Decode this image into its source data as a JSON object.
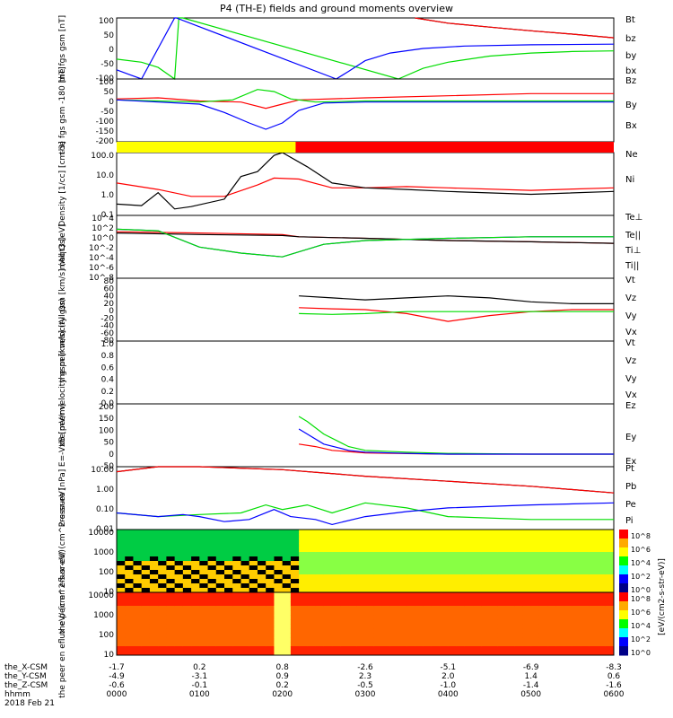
{
  "title": "P4 (TH-E) fields and ground moments overview",
  "date": "2018 Feb 21",
  "colors": {
    "black": "#000000",
    "red": "#ff0000",
    "green": "#00dd00",
    "blue": "#0000ff",
    "yellow": "#ffff00",
    "cyan": "#00ffff"
  },
  "colorbar_label": "[eV/(cm2-s-str-eV)]",
  "spec_colorbar_labels": {
    "peir": "eV/(cm^2-s-sr-eV) (All Qs)",
    "peer": "eV/(cm^2-s-sr-eV) (All Qs)"
  },
  "xaxis": {
    "rows": [
      {
        "label": "the_X-CSM",
        "values": [
          "-1.7",
          "0.2",
          "0.8",
          "-2.6",
          "-5.1",
          "-6.9",
          "-8.3"
        ]
      },
      {
        "label": "the_Y-CSM",
        "values": [
          "-4.9",
          "-3.1",
          "0.9",
          "2.3",
          "2.0",
          "1.4",
          "0.6"
        ]
      },
      {
        "label": "the_Z-CSM",
        "values": [
          "-0.6",
          "-0.1",
          "0.2",
          "-0.5",
          "-1.0",
          "-1.4",
          "-1.6"
        ]
      },
      {
        "label": "hhmm",
        "values": [
          "0000",
          "0100",
          "0200",
          "0300",
          "0400",
          "0500",
          "0600"
        ]
      }
    ]
  },
  "chart_data": [
    {
      "type": "line",
      "ylabel": "the fgs gsm [nT]",
      "ylim": [
        -100,
        100
      ],
      "yticks": [
        "100",
        "50",
        "0",
        "-50",
        "-100"
      ],
      "xlim_hours": [
        0,
        6
      ],
      "series": [
        {
          "name": "Bt",
          "color": "#000000",
          "x": [
            3.6,
            4.0,
            4.5,
            5.0,
            5.5,
            6.0
          ],
          "y": [
            100,
            83,
            70,
            58,
            47,
            35
          ]
        },
        {
          "name": "bz",
          "color": "#ff0000",
          "x": [
            3.6,
            4.0,
            4.5,
            5.0,
            5.5,
            6.0
          ],
          "y": [
            100,
            83,
            70,
            58,
            47,
            35
          ]
        },
        {
          "name": "by",
          "color": "#00dd00",
          "x": [
            0.0,
            0.3,
            0.5,
            0.7,
            0.75,
            0.8,
            3.4,
            3.7,
            4.0,
            4.5,
            5.0,
            5.5,
            6.0
          ],
          "y": [
            -35,
            -45,
            -62,
            -100,
            100,
            100,
            -100,
            -65,
            -45,
            -25,
            -15,
            -10,
            -8
          ]
        },
        {
          "name": "bx",
          "color": "#0000ff",
          "x": [
            0.0,
            0.15,
            0.3,
            0.7,
            0.72,
            2.65,
            2.8,
            3.0,
            3.3,
            3.7,
            4.2,
            5.0,
            6.0
          ],
          "y": [
            -70,
            -85,
            -100,
            100,
            100,
            -100,
            -75,
            -40,
            -15,
            0,
            8,
            12,
            14
          ]
        }
      ]
    },
    {
      "type": "line",
      "ylabel": "the fgs gsm -180 [nT]",
      "ylim": [
        -200,
        100
      ],
      "yticks": [
        "100",
        "50",
        "0",
        "-50",
        "-100",
        "-150",
        "-200"
      ],
      "series": [
        {
          "name": "Bz",
          "color": "#ff0000",
          "x": [
            0.0,
            0.5,
            1.0,
            1.5,
            1.8,
            2.0,
            2.2,
            3.0,
            4.0,
            5.0,
            6.0
          ],
          "y": [
            5,
            10,
            -5,
            -10,
            -40,
            -20,
            0,
            10,
            20,
            30,
            30
          ]
        },
        {
          "name": "By",
          "color": "#00dd00",
          "x": [
            0.0,
            0.5,
            1.0,
            1.4,
            1.7,
            1.9,
            2.1,
            2.4,
            3.0,
            4.0,
            5.0,
            6.0
          ],
          "y": [
            0,
            -5,
            -10,
            0,
            50,
            40,
            5,
            -10,
            -5,
            -5,
            -5,
            -5
          ]
        },
        {
          "name": "Bx",
          "color": "#0000ff",
          "x": [
            0.0,
            0.5,
            1.0,
            1.3,
            1.6,
            1.8,
            2.0,
            2.2,
            2.5,
            3.0,
            4.0,
            5.0,
            6.0
          ],
          "y": [
            0,
            -10,
            -20,
            -60,
            -110,
            -140,
            -110,
            -50,
            -15,
            -10,
            -10,
            -10,
            -10
          ]
        }
      ]
    },
    {
      "type": "line",
      "ylabel": "Density [1/cc] [cm-3]",
      "yscale": "log",
      "ylim": [
        0.02,
        150
      ],
      "yticks": [
        "100.0",
        "10.0",
        "1.0",
        "0.1"
      ],
      "series": [
        {
          "name": "Ne",
          "color": "#ff0000",
          "x": [
            0.0,
            0.5,
            0.9,
            1.3,
            1.7,
            1.9,
            2.2,
            2.6,
            3.0,
            3.5,
            4.0,
            5.0,
            6.0
          ],
          "y": [
            2.0,
            0.8,
            0.3,
            0.3,
            1.5,
            4.0,
            3.5,
            1.0,
            1.0,
            1.2,
            1.0,
            0.7,
            1.0
          ]
        },
        {
          "name": "Ni",
          "color": "#000000",
          "x": [
            0.0,
            0.3,
            0.5,
            0.7,
            0.9,
            1.3,
            1.5,
            1.7,
            1.9,
            2.0,
            2.3,
            2.6,
            3.0,
            3.5,
            4.0,
            5.0,
            6.0
          ],
          "y": [
            0.1,
            0.08,
            0.5,
            0.05,
            0.07,
            0.2,
            5,
            10,
            100,
            150,
            20,
            2,
            1.0,
            0.8,
            0.6,
            0.4,
            0.6
          ]
        }
      ]
    },
    {
      "type": "line",
      "ylabel": "moqt3 [eV]",
      "yscale": "log",
      "ylim": [
        1,
        100000
      ],
      "yticks": [
        "10^4",
        "10^2",
        "10^0",
        "10^-2",
        "10^-4",
        "10^-6",
        "10^-8"
      ],
      "series": [
        {
          "name": "Te⊥",
          "color": "#ff0000",
          "x": [
            0.0,
            1.0,
            2.0,
            2.2,
            3.0,
            4.0,
            5.0,
            6.0
          ],
          "y": [
            5000,
            4000,
            3000,
            2000,
            1500,
            1000,
            800,
            600
          ]
        },
        {
          "name": "Te||",
          "color": "#000000",
          "x": [
            0.0,
            1.0,
            2.0,
            2.2,
            3.0,
            4.0,
            5.0,
            6.0
          ],
          "y": [
            4000,
            3000,
            2500,
            2000,
            1500,
            1000,
            800,
            600
          ]
        },
        {
          "name": "Ti⊥",
          "color": "#0000ff",
          "x": [
            0.0,
            0.5,
            1.0,
            1.5,
            2.0,
            2.5,
            3.0,
            4.0,
            5.0,
            6.0
          ],
          "y": [
            8000,
            6000,
            300,
            100,
            50,
            500,
            1000,
            1500,
            2000,
            2000
          ]
        },
        {
          "name": "Ti||",
          "color": "#00dd00",
          "x": [
            0.0,
            0.5,
            1.0,
            1.5,
            2.0,
            2.5,
            3.0,
            4.0,
            5.0,
            6.0
          ],
          "y": [
            8000,
            6000,
            300,
            100,
            50,
            500,
            1000,
            1500,
            2000,
            2000
          ]
        }
      ]
    },
    {
      "type": "line",
      "ylabel": "the peir velocity gsm [km/s] (All Qs)",
      "ylim": [
        -80,
        80
      ],
      "yticks": [
        "80",
        "60",
        "40",
        "20",
        "0",
        "-20",
        "-40",
        "-60",
        "-80"
      ],
      "series": [
        {
          "name": "Vt",
          "color": "#000000",
          "x": [
            2.2,
            2.6,
            3.0,
            3.5,
            4.0,
            4.5,
            5.0,
            5.5,
            6.0
          ],
          "y": [
            35,
            30,
            25,
            30,
            35,
            30,
            20,
            15,
            15
          ]
        },
        {
          "name": "Vz",
          "color": "#ff0000",
          "x": [
            2.2,
            2.6,
            3.0,
            3.5,
            4.0,
            4.5,
            5.0,
            5.5,
            6.0
          ],
          "y": [
            5,
            2,
            0,
            -10,
            -30,
            -15,
            -5,
            0,
            0
          ]
        },
        {
          "name": "Vy",
          "color": "#00dd00",
          "x": [
            2.2,
            2.6,
            3.0,
            3.5,
            4.0,
            4.5,
            5.0,
            5.5,
            6.0
          ],
          "y": [
            -10,
            -12,
            -10,
            -5,
            -5,
            -5,
            -5,
            -5,
            -5
          ]
        },
        {
          "name": "Vx",
          "color": "#0000ff",
          "x": [],
          "y": []
        }
      ]
    },
    {
      "type": "line",
      "ylabel": "the peer velocity gsm [km/s] (All Qs)",
      "ylim": [
        0,
        1
      ],
      "yticks": [
        "1.0",
        "0.8",
        "0.6",
        "0.4",
        "0.2",
        "0.0"
      ],
      "series": [
        {
          "name": "Vt",
          "color": "#000000",
          "x": [],
          "y": []
        },
        {
          "name": "Vz",
          "color": "#ff0000",
          "x": [],
          "y": []
        },
        {
          "name": "Vy",
          "color": "#00dd00",
          "x": [],
          "y": []
        },
        {
          "name": "Vx",
          "color": "#0000ff",
          "x": [],
          "y": []
        }
      ]
    },
    {
      "type": "line",
      "ylabel": "E=-VxB [mV/m]",
      "ylim": [
        -50,
        200
      ],
      "yticks": [
        "200",
        "150",
        "100",
        "50",
        "0",
        "-50"
      ],
      "series": [
        {
          "name": "Ez",
          "color": "#ff0000",
          "x": [
            2.2,
            2.4,
            2.6,
            3.0,
            3.5,
            4.0,
            5.0,
            6.0
          ],
          "y": [
            40,
            30,
            15,
            5,
            2,
            0,
            0,
            0
          ]
        },
        {
          "name": "Ey",
          "color": "#00dd00",
          "x": [
            2.2,
            2.3,
            2.5,
            2.8,
            3.0,
            3.5,
            4.0,
            5.0,
            6.0
          ],
          "y": [
            150,
            130,
            80,
            30,
            15,
            8,
            3,
            0,
            0
          ]
        },
        {
          "name": "Ex",
          "color": "#0000ff",
          "x": [
            2.2,
            2.3,
            2.5,
            2.8,
            3.0,
            3.5,
            4.0,
            5.0,
            6.0
          ],
          "y": [
            100,
            80,
            40,
            15,
            8,
            3,
            0,
            0,
            0
          ]
        }
      ]
    },
    {
      "type": "line",
      "ylabel": "Pressure [nPa]",
      "yscale": "log",
      "ylim": [
        0.005,
        30
      ],
      "yticks": [
        "10.00",
        "1.00",
        "0.10",
        "0.01"
      ],
      "series": [
        {
          "name": "Pt",
          "color": "#000000",
          "x": [
            0.0,
            0.5,
            1.0,
            2.0,
            3.0,
            4.0,
            5.0,
            6.0
          ],
          "y": [
            15,
            30,
            30,
            20,
            8,
            4,
            2,
            0.8
          ]
        },
        {
          "name": "Pb",
          "color": "#ff0000",
          "x": [
            0.0,
            0.5,
            1.0,
            2.0,
            3.0,
            4.0,
            5.0,
            6.0
          ],
          "y": [
            15,
            30,
            30,
            20,
            8,
            4,
            2,
            0.8
          ]
        },
        {
          "name": "Pe",
          "color": "#00dd00",
          "x": [
            0.0,
            0.5,
            1.0,
            1.5,
            1.8,
            2.0,
            2.3,
            2.6,
            3.0,
            3.5,
            4.0,
            5.0,
            6.0
          ],
          "y": [
            0.05,
            0.03,
            0.04,
            0.05,
            0.15,
            0.08,
            0.15,
            0.05,
            0.2,
            0.1,
            0.03,
            0.02,
            0.02
          ]
        },
        {
          "name": "Pi",
          "color": "#0000ff",
          "x": [
            0.0,
            0.5,
            0.8,
            1.0,
            1.3,
            1.6,
            1.9,
            2.1,
            2.4,
            2.6,
            3.0,
            3.5,
            4.0,
            5.0,
            6.0
          ],
          "y": [
            0.05,
            0.03,
            0.04,
            0.03,
            0.015,
            0.02,
            0.08,
            0.03,
            0.02,
            0.01,
            0.03,
            0.06,
            0.1,
            0.15,
            0.2
          ]
        }
      ]
    },
    {
      "type": "heatmap",
      "ylabel": "the peir en eflux eV/ (cm^2-s-sr-eV)",
      "yscale": "log",
      "ylim": [
        5,
        20000
      ],
      "yticks": [
        "10000",
        "1000",
        "100",
        "10"
      ],
      "colorbar_ticks": [
        "10^8",
        "10^6",
        "10^4",
        "10^2",
        "10^0"
      ]
    },
    {
      "type": "heatmap",
      "ylabel": "the peer en eflux eV/ (cm^2-s-sr-eV)",
      "yscale": "log",
      "ylim": [
        5,
        20000
      ],
      "yticks": [
        "10000",
        "1000",
        "100",
        "10"
      ],
      "colorbar_ticks": [
        "10^8",
        "10^6",
        "10^4",
        "10^2",
        "10^0"
      ]
    }
  ]
}
